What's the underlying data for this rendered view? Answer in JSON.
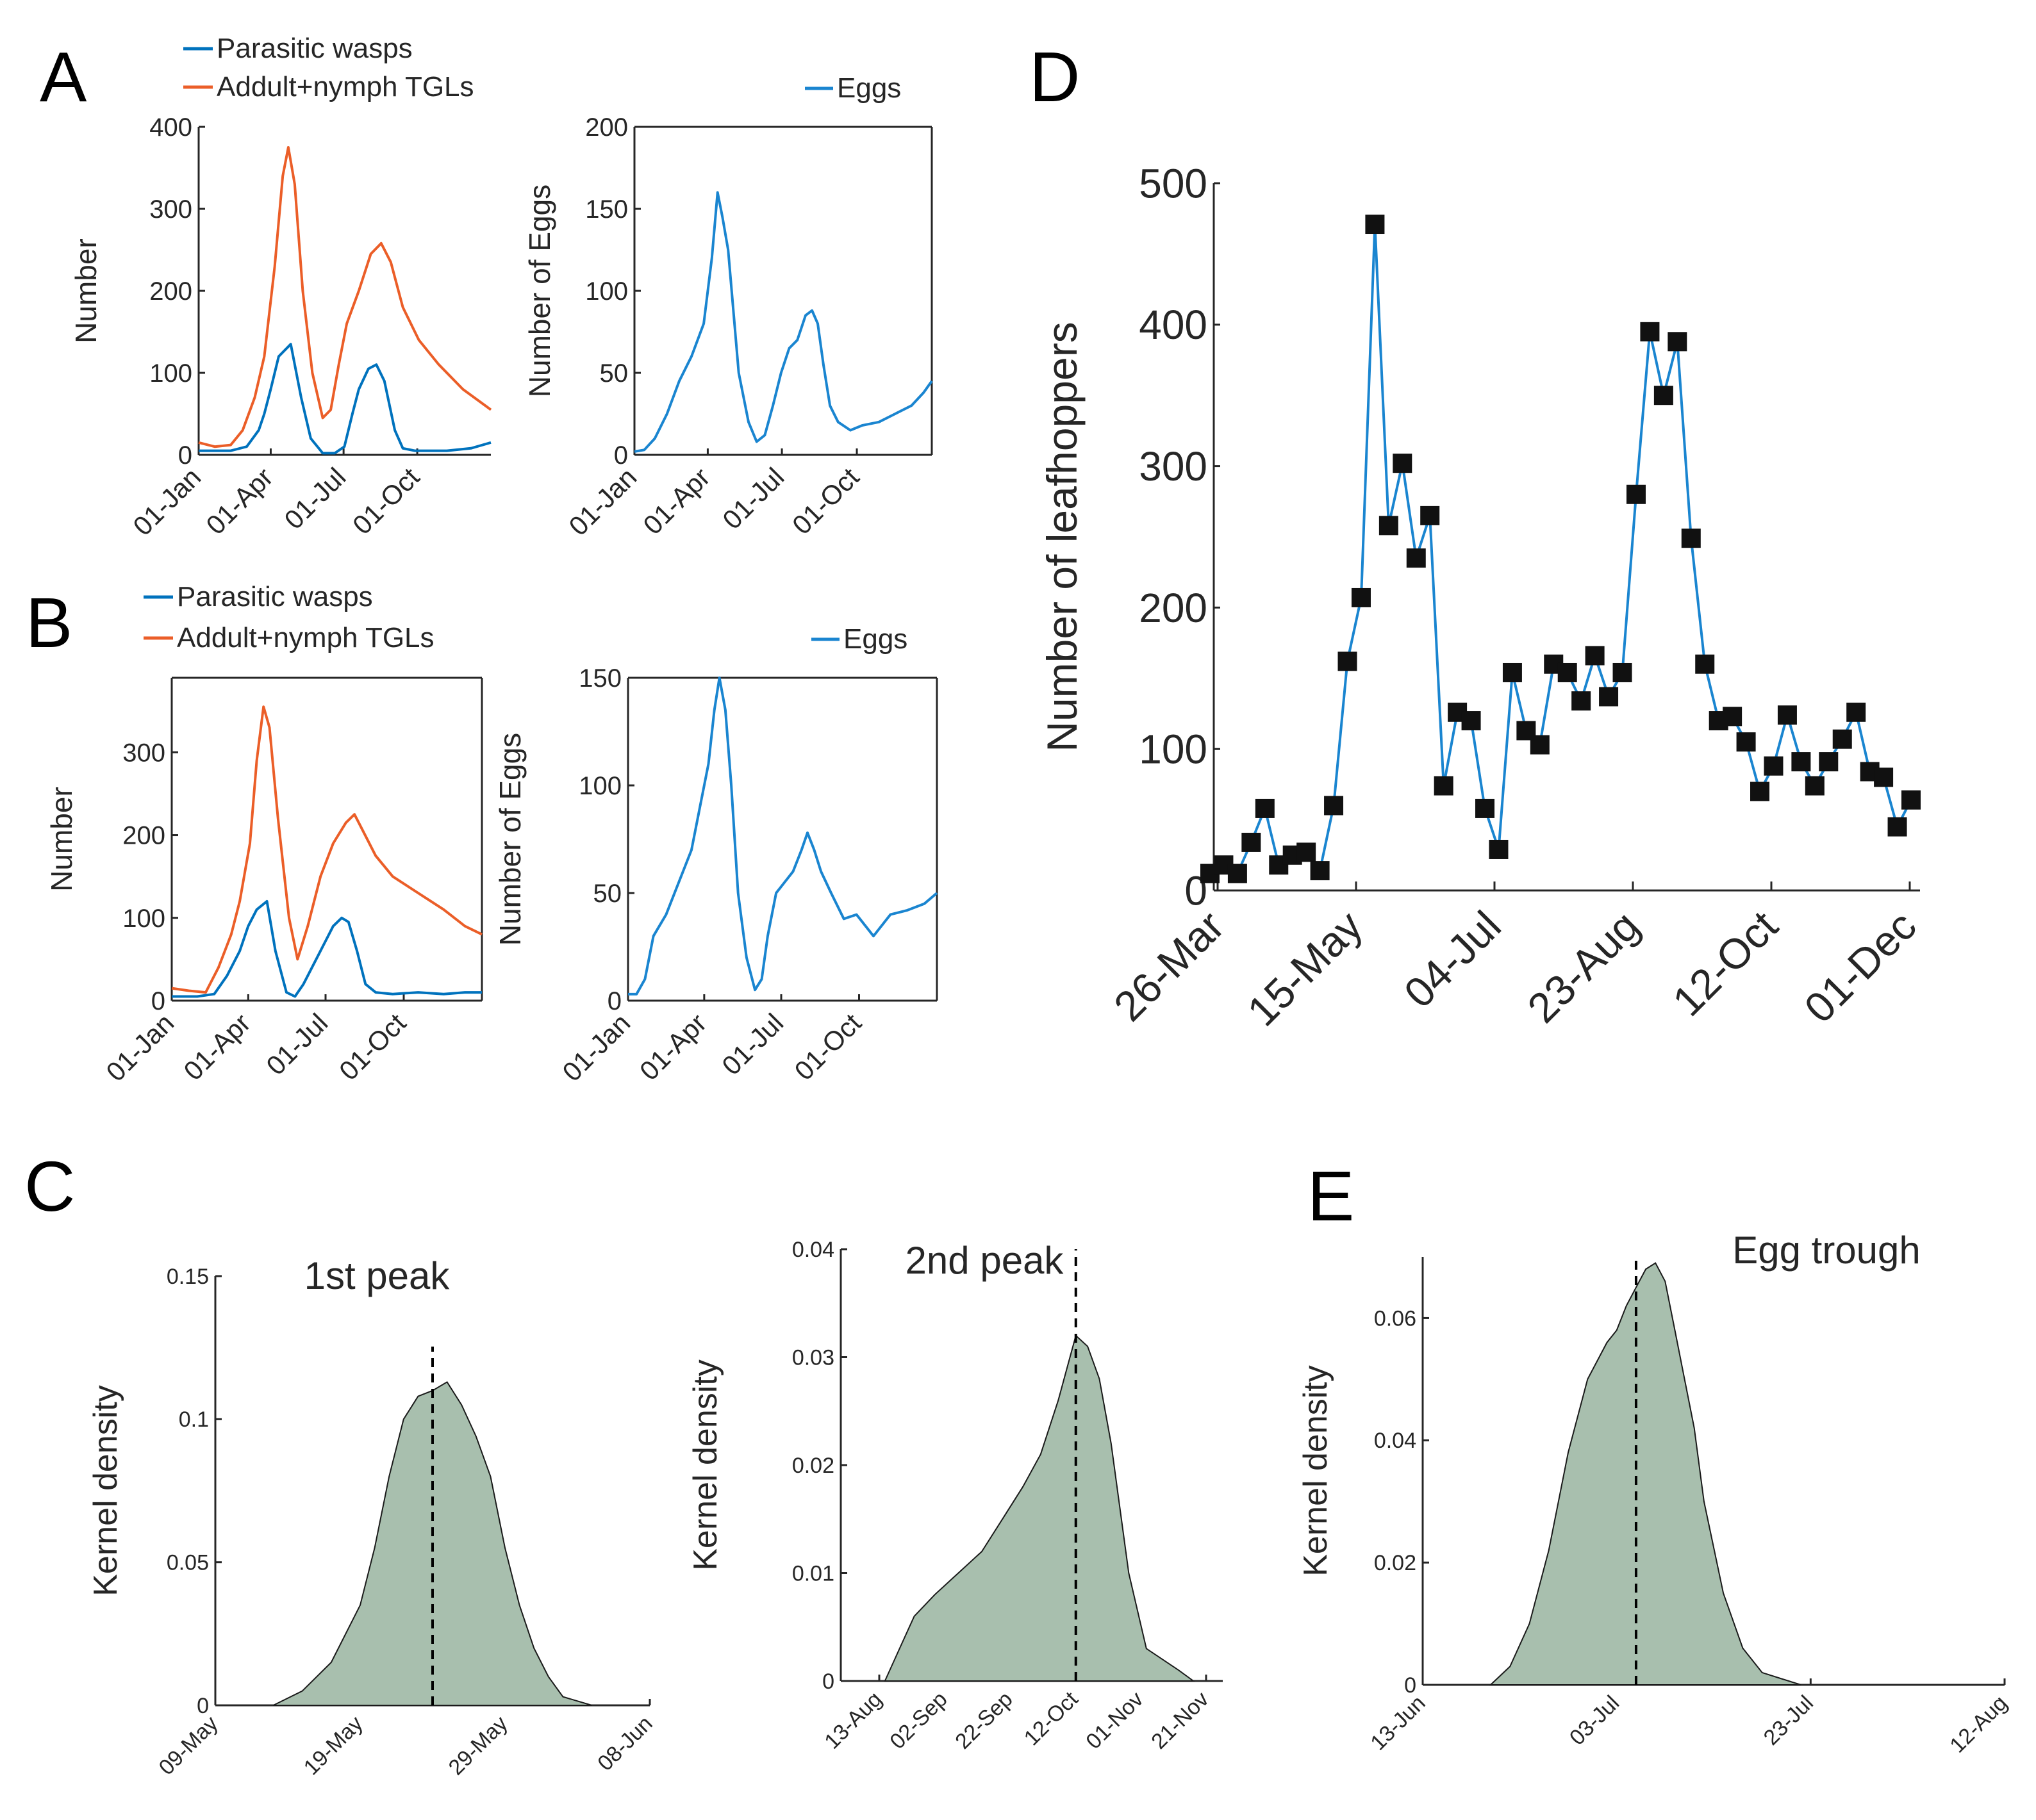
{
  "colors": {
    "wasp": "#0072BD",
    "tgl": "#EB5E28",
    "eggs": "#1A85D0",
    "kde_fill": "#A8BFAE",
    "marker": "#111111",
    "axis": "#262626"
  },
  "panel_labels": {
    "A": "A",
    "B": "B",
    "C": "C",
    "D": "D",
    "E": "E"
  },
  "legend": {
    "wasps": "Parasitic wasps",
    "tgl": "Addult+nymph TGLs",
    "eggs": "Eggs"
  },
  "date_ticks": [
    "01-Jan",
    "01-Apr",
    "01-Jul",
    "01-Oct"
  ],
  "chart_data": [
    {
      "id": "A-left",
      "type": "line",
      "ylabel": "Number",
      "ylim": [
        0,
        400
      ],
      "yticks": [
        "0",
        "100",
        "200",
        "300",
        "400"
      ],
      "box": false,
      "series": [
        {
          "name": "Parasitic wasps",
          "x": [
            0,
            40,
            60,
            75,
            82,
            90,
            100,
            115,
            128,
            140,
            155,
            170,
            182,
            192,
            200,
            212,
            222,
            232,
            245,
            255,
            270,
            290,
            310,
            340,
            365
          ],
          "y": [
            5,
            5,
            10,
            30,
            50,
            80,
            120,
            135,
            70,
            20,
            2,
            2,
            10,
            50,
            80,
            105,
            110,
            90,
            30,
            8,
            5,
            5,
            5,
            8,
            15
          ]
        },
        {
          "name": "Addult+nymph TGLs",
          "x": [
            0,
            20,
            40,
            55,
            70,
            82,
            95,
            105,
            112,
            120,
            130,
            142,
            155,
            165,
            175,
            185,
            200,
            215,
            228,
            240,
            255,
            275,
            300,
            330,
            365
          ],
          "y": [
            15,
            10,
            12,
            30,
            70,
            120,
            230,
            340,
            375,
            330,
            200,
            100,
            45,
            55,
            110,
            160,
            200,
            245,
            258,
            235,
            180,
            140,
            110,
            80,
            55
          ]
        }
      ]
    },
    {
      "id": "A-right",
      "type": "line",
      "ylabel": "Number of Eggs",
      "ylim": [
        0,
        200
      ],
      "yticks": [
        "0",
        "50",
        "100",
        "150",
        "200"
      ],
      "box": true,
      "series": [
        {
          "name": "Eggs",
          "x": [
            0,
            12,
            25,
            40,
            55,
            70,
            85,
            95,
            102,
            108,
            115,
            128,
            140,
            150,
            160,
            170,
            180,
            190,
            200,
            210,
            218,
            225,
            232,
            240,
            250,
            265,
            280,
            300,
            320,
            340,
            355,
            365
          ],
          "y": [
            2,
            3,
            10,
            25,
            45,
            60,
            80,
            120,
            160,
            145,
            125,
            50,
            20,
            8,
            12,
            30,
            50,
            65,
            70,
            85,
            88,
            80,
            55,
            30,
            20,
            15,
            18,
            20,
            25,
            30,
            38,
            45
          ]
        }
      ]
    },
    {
      "id": "B-left",
      "type": "line",
      "ylabel": "Number",
      "ylim": [
        0,
        390
      ],
      "yticks": [
        "0",
        "100",
        "200",
        "300"
      ],
      "box": true,
      "series": [
        {
          "name": "Parasitic wasps",
          "x": [
            0,
            30,
            50,
            65,
            80,
            90,
            100,
            112,
            122,
            135,
            145,
            155,
            170,
            180,
            190,
            200,
            208,
            218,
            228,
            240,
            260,
            290,
            320,
            345,
            365
          ],
          "y": [
            5,
            5,
            8,
            30,
            60,
            90,
            110,
            120,
            60,
            10,
            5,
            20,
            50,
            70,
            90,
            100,
            95,
            60,
            20,
            10,
            8,
            10,
            8,
            10,
            10
          ]
        },
        {
          "name": "Addult+nymph TGLs",
          "x": [
            0,
            20,
            40,
            55,
            70,
            80,
            92,
            100,
            108,
            115,
            125,
            138,
            148,
            160,
            175,
            190,
            205,
            215,
            225,
            240,
            260,
            290,
            320,
            345,
            365
          ],
          "y": [
            15,
            12,
            10,
            40,
            80,
            120,
            190,
            290,
            355,
            330,
            220,
            100,
            50,
            90,
            150,
            190,
            215,
            225,
            205,
            175,
            150,
            130,
            110,
            90,
            80
          ]
        }
      ]
    },
    {
      "id": "B-right",
      "type": "line",
      "ylabel": "Number of Eggs",
      "ylim": [
        0,
        150
      ],
      "yticks": [
        "0",
        "50",
        "100",
        "150"
      ],
      "box": true,
      "series": [
        {
          "name": "Eggs",
          "x": [
            0,
            10,
            20,
            30,
            45,
            60,
            75,
            85,
            95,
            102,
            108,
            115,
            122,
            130,
            140,
            150,
            158,
            165,
            175,
            185,
            195,
            205,
            212,
            220,
            228,
            240,
            255,
            270,
            290,
            310,
            330,
            350,
            365
          ],
          "y": [
            3,
            3,
            10,
            30,
            40,
            55,
            70,
            90,
            110,
            135,
            150,
            135,
            100,
            50,
            20,
            5,
            10,
            30,
            50,
            55,
            60,
            70,
            78,
            70,
            60,
            50,
            38,
            40,
            30,
            40,
            42,
            45,
            50
          ]
        }
      ]
    },
    {
      "id": "D",
      "type": "line",
      "ylabel": "Number of leafhoppers",
      "ylim": [
        0,
        500
      ],
      "yticks": [
        "0",
        "100",
        "200",
        "300",
        "400",
        "500"
      ],
      "xticks": [
        "26-Mar",
        "15-May",
        "04-Jul",
        "23-Aug",
        "12-Oct",
        "01-Dec"
      ],
      "series": [
        {
          "name": "Number of leafhoppers",
          "y": [
            12,
            18,
            12,
            34,
            58,
            18,
            25,
            27,
            14,
            60,
            162,
            207,
            471,
            258,
            302,
            235,
            265,
            74,
            126,
            120,
            58,
            29,
            154,
            113,
            103,
            160,
            154,
            134,
            166,
            137,
            154,
            280,
            395,
            350,
            388,
            249,
            160,
            120,
            123,
            105,
            70,
            88,
            124,
            91,
            74,
            91,
            107,
            126,
            84,
            80,
            45,
            64
          ]
        }
      ]
    },
    {
      "id": "C-left",
      "type": "area",
      "title": "1st peak",
      "ylabel": "Kernel density",
      "ylim": [
        0,
        0.15
      ],
      "yticks": [
        "0",
        "0.05",
        "0.1",
        "0.15"
      ],
      "xticks": [
        "09-May",
        "19-May",
        "29-May",
        "08-Jun"
      ],
      "xrange": [
        0,
        30
      ],
      "median": 15,
      "x": [
        4,
        6,
        8,
        10,
        11,
        12,
        13,
        14,
        15,
        16,
        17,
        18,
        19,
        20,
        21,
        22,
        23,
        24,
        26
      ],
      "y": [
        0,
        0.005,
        0.015,
        0.035,
        0.055,
        0.08,
        0.1,
        0.108,
        0.11,
        0.113,
        0.105,
        0.094,
        0.08,
        0.055,
        0.035,
        0.02,
        0.01,
        0.003,
        0
      ]
    },
    {
      "id": "C-right",
      "type": "area",
      "title": "2nd peak",
      "ylabel": "Kernel density",
      "ylim": [
        0,
        0.04
      ],
      "yticks": [
        "0",
        "0.01",
        "0.02",
        "0.03",
        "0.04"
      ],
      "xticks": [
        "13-Aug",
        "02-Sep",
        "22-Sep",
        "12-Oct",
        "01-Nov",
        "21-Nov"
      ],
      "xrange": [
        -20,
        110
      ],
      "median": 60,
      "x": [
        -5,
        0,
        5,
        12,
        20,
        28,
        35,
        42,
        48,
        54,
        58,
        60,
        64,
        68,
        72,
        78,
        84,
        95,
        100
      ],
      "y": [
        0,
        0.003,
        0.006,
        0.008,
        0.01,
        0.012,
        0.015,
        0.018,
        0.021,
        0.026,
        0.03,
        0.032,
        0.031,
        0.028,
        0.022,
        0.01,
        0.003,
        0.001,
        0
      ]
    },
    {
      "id": "E",
      "type": "area",
      "title": "Egg trough",
      "ylabel": "Kernel density",
      "ylim": [
        0,
        0.07
      ],
      "yticks": [
        "0",
        "0.02",
        "0.04",
        "0.06"
      ],
      "xticks": [
        "13-Jun",
        "03-Jul",
        "23-Jul",
        "12-Aug"
      ],
      "xrange": [
        0,
        60
      ],
      "median": 22,
      "x": [
        7,
        9,
        11,
        13,
        15,
        17,
        19,
        20,
        21,
        22,
        23,
        24,
        25,
        26,
        27,
        28,
        29,
        31,
        33,
        35,
        37,
        39
      ],
      "y": [
        0,
        0.003,
        0.01,
        0.022,
        0.038,
        0.05,
        0.056,
        0.058,
        0.062,
        0.065,
        0.068,
        0.069,
        0.066,
        0.058,
        0.05,
        0.042,
        0.03,
        0.015,
        0.006,
        0.002,
        0.001,
        0
      ]
    }
  ]
}
